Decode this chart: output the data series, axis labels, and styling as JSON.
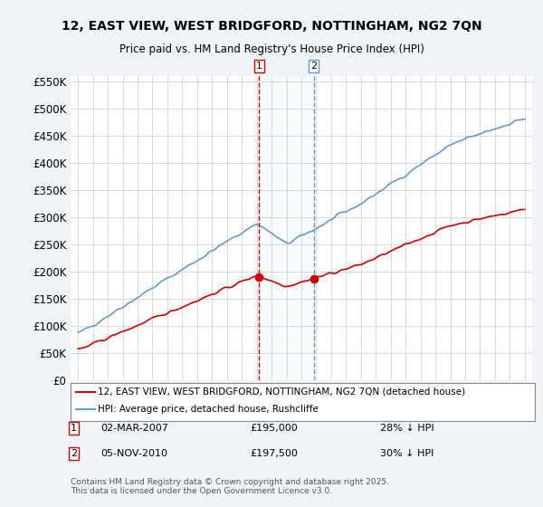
{
  "title": "12, EAST VIEW, WEST BRIDGFORD, NOTTINGHAM, NG2 7QN",
  "subtitle": "Price paid vs. HM Land Registry's House Price Index (HPI)",
  "ylabel_ticks": [
    "£0",
    "£50K",
    "£100K",
    "£150K",
    "£200K",
    "£250K",
    "£300K",
    "£350K",
    "£400K",
    "£450K",
    "£500K",
    "£550K"
  ],
  "ytick_values": [
    0,
    50000,
    100000,
    150000,
    200000,
    250000,
    300000,
    350000,
    400000,
    450000,
    500000,
    550000
  ],
  "ylim": [
    0,
    560000
  ],
  "legend_line1": "12, EAST VIEW, WEST BRIDGFORD, NOTTINGHAM, NG2 7QN (detached house)",
  "legend_line2": "HPI: Average price, detached house, Rushcliffe",
  "purchase1_date": "02-MAR-2007",
  "purchase1_price": 195000,
  "purchase1_hpi": "28% ↓ HPI",
  "purchase2_date": "05-NOV-2010",
  "purchase2_price": 197500,
  "purchase2_hpi": "30% ↓ HPI",
  "footnote": "Contains HM Land Registry data © Crown copyright and database right 2025.\nThis data is licensed under the Open Government Licence v3.0.",
  "line_color_red": "#cc0000",
  "line_color_blue": "#6699cc",
  "bg_color": "#f0f4f8",
  "plot_bg": "#ffffff",
  "grid_color": "#cccccc",
  "vline_color": "#cc0000",
  "vline2_color": "#6699cc",
  "shade_color": "#d0e4f0"
}
